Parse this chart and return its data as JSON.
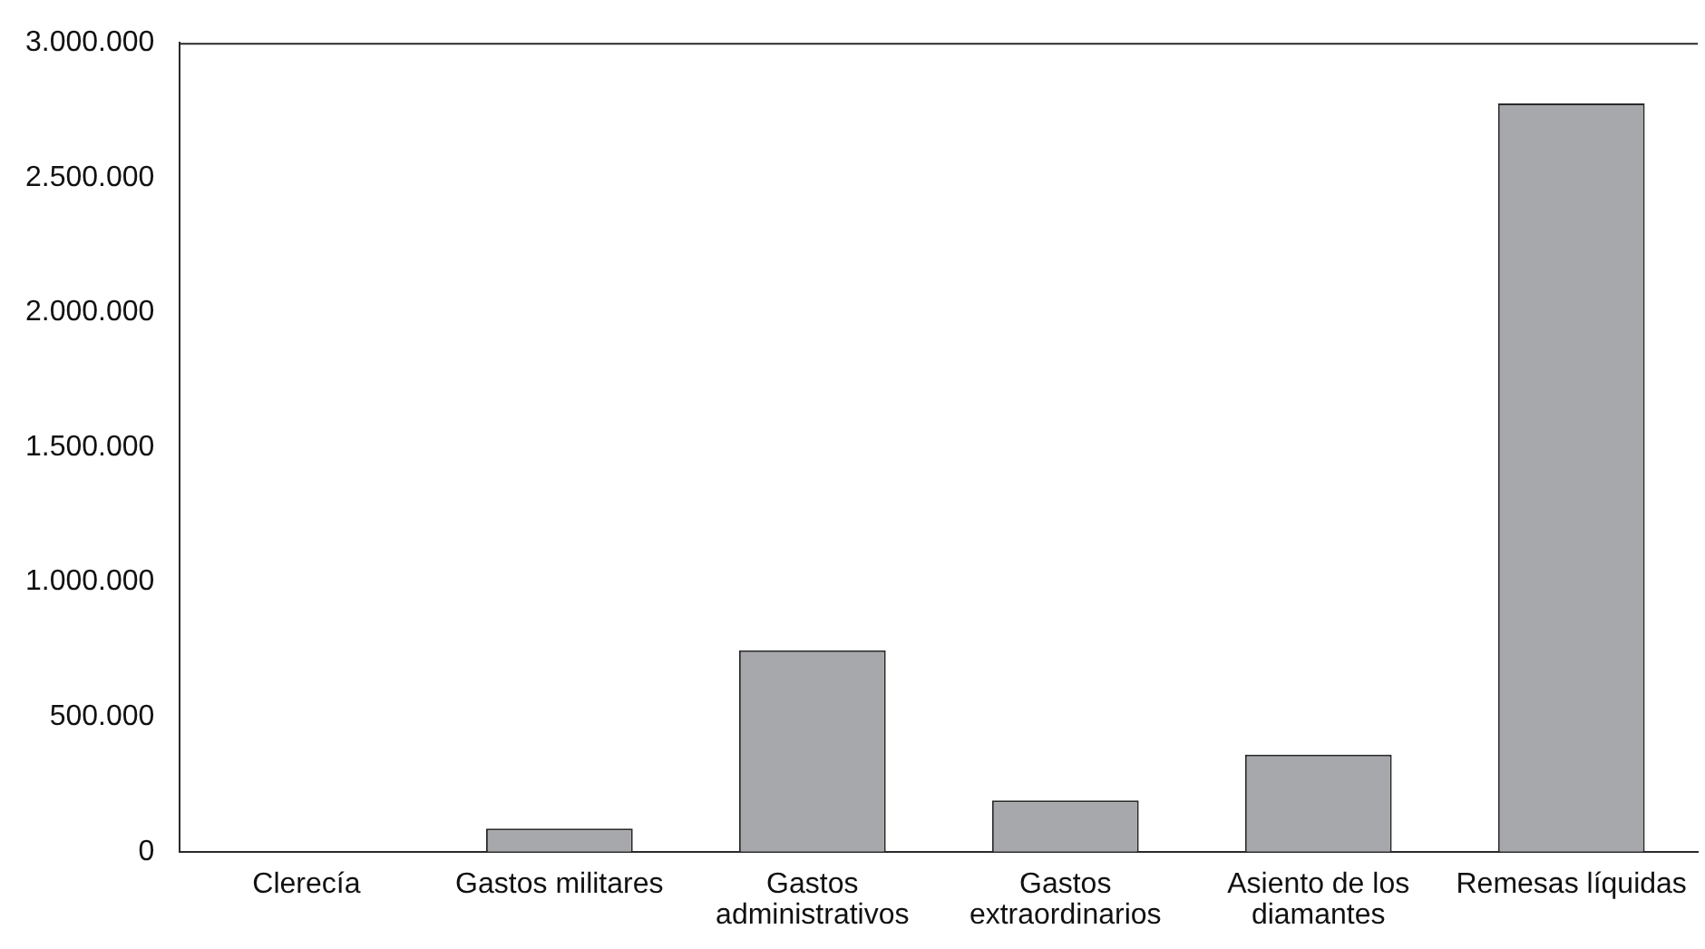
{
  "chart_data": {
    "type": "bar",
    "categories": [
      "Clerecía",
      "Gastos militares",
      "Gastos administrativos",
      "Gastos extraordinarios",
      "Asiento de los diamantes",
      "Remesas líquidas"
    ],
    "values": [
      0,
      86000,
      747000,
      190000,
      360000,
      2775000
    ],
    "color": "#a7a8ab",
    "ylim": [
      0,
      3000000
    ],
    "yticks": [
      {
        "value": 0,
        "label": "0"
      },
      {
        "value": 500000,
        "label": "500.000"
      },
      {
        "value": 1000000,
        "label": "1.000.000"
      },
      {
        "value": 1500000,
        "label": "1.500.000"
      },
      {
        "value": 2000000,
        "label": "2.000.000"
      },
      {
        "value": 2500000,
        "label": "2.500.000"
      },
      {
        "value": 3000000,
        "label": "3.000.000"
      }
    ],
    "grid": false,
    "legend": false
  }
}
